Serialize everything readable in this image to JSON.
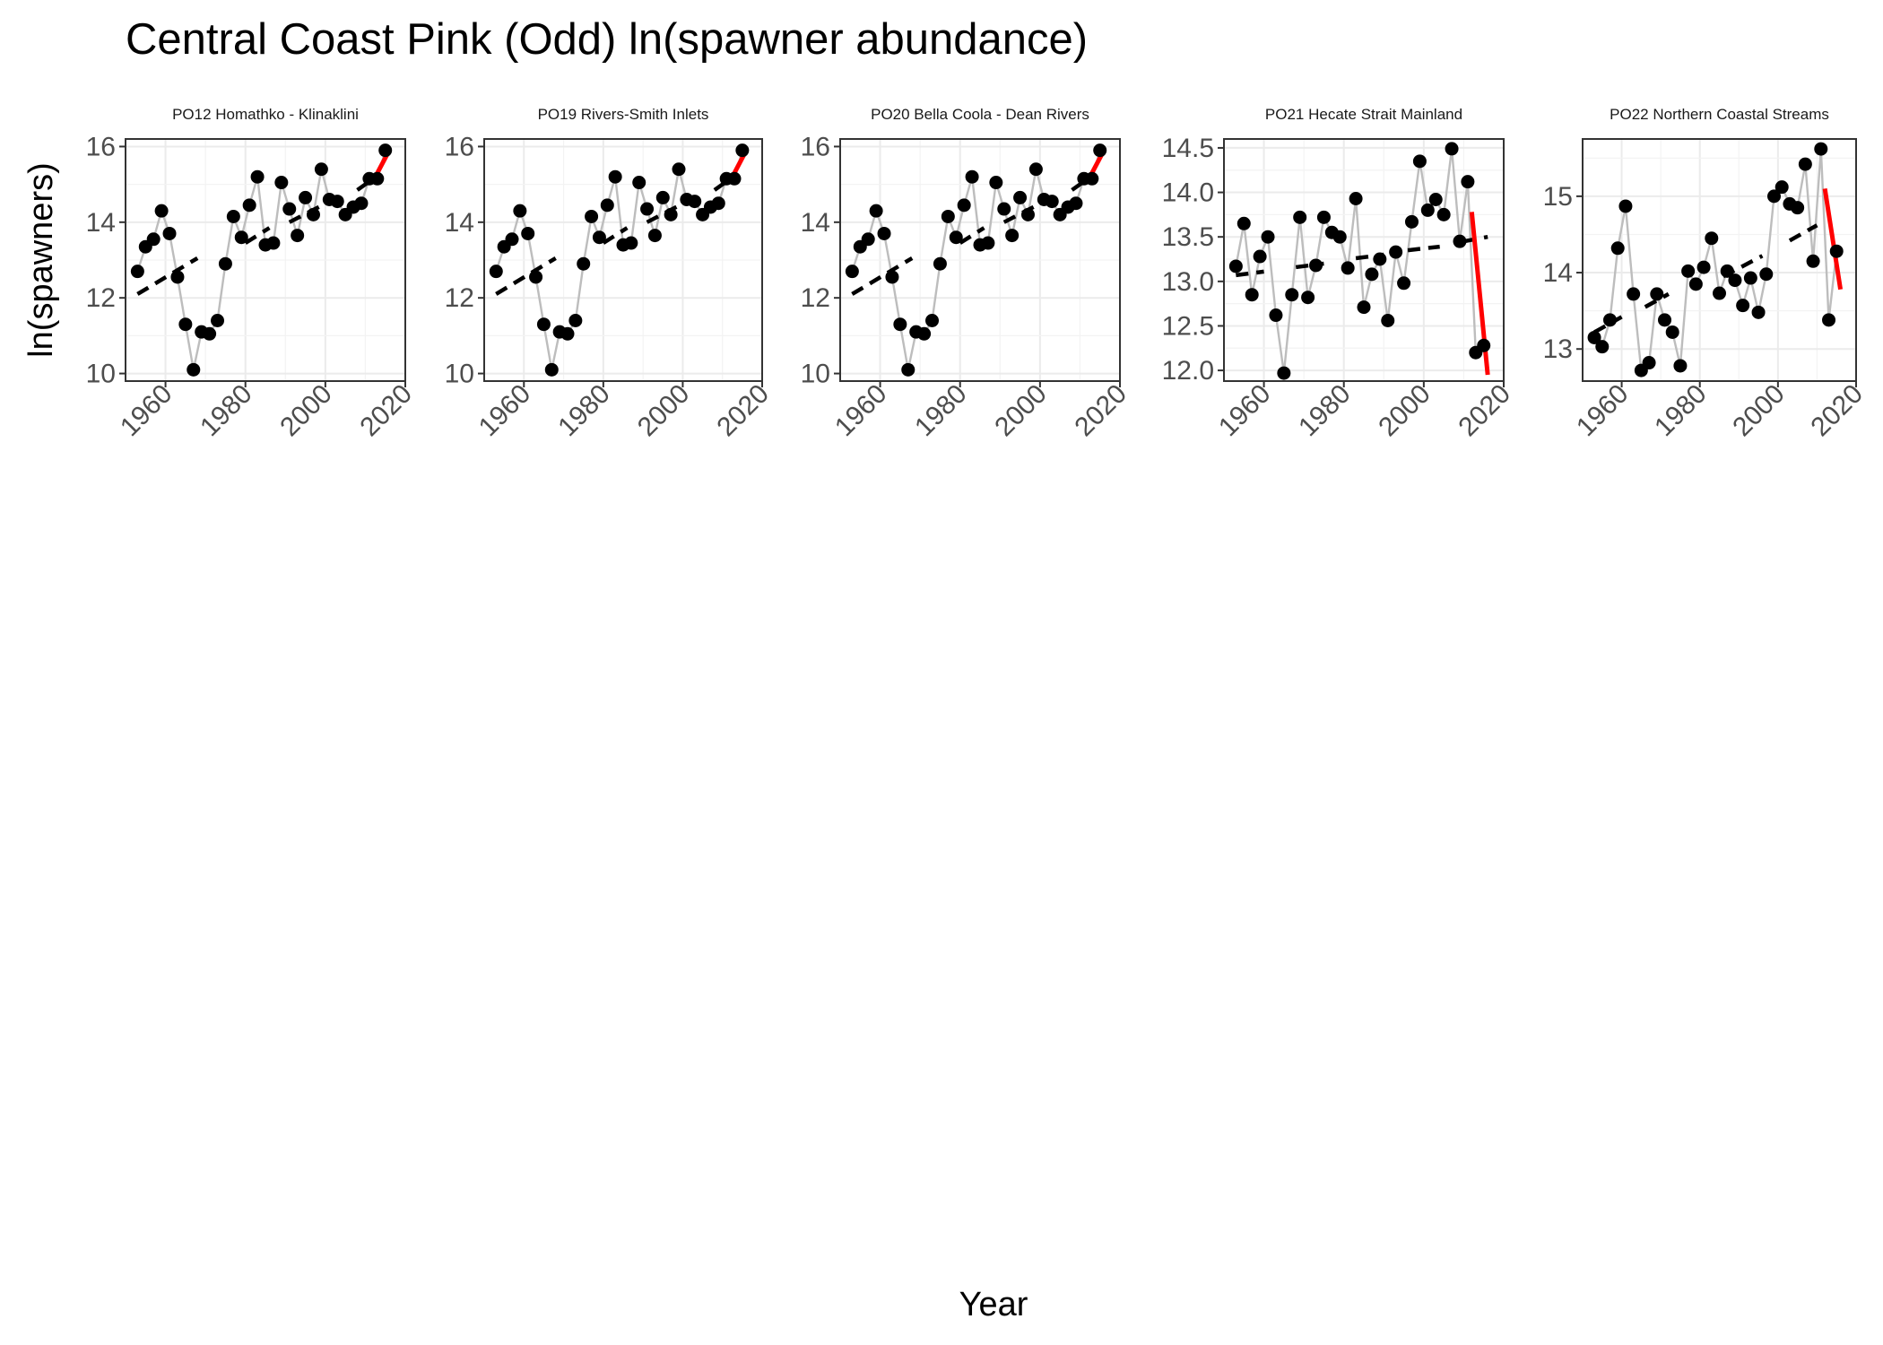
{
  "figure": {
    "title": "Central Coast Pink (Odd) ln(spawner abundance)",
    "xlabel": "Year",
    "ylabel": "ln(spawners)"
  },
  "chart_data": [
    {
      "type": "line",
      "title": "PO12 Homathko - Klinaklini",
      "xlim": [
        1950,
        2020
      ],
      "ylim": [
        9.8,
        16.2
      ],
      "xticks": [
        1960,
        1980,
        2000,
        2020
      ],
      "yticks": [
        10,
        12,
        14,
        16
      ],
      "grid": true,
      "years": [
        1953,
        1955,
        1957,
        1959,
        1961,
        1963,
        1965,
        1967,
        1969,
        1971,
        1973,
        1975,
        1977,
        1979,
        1981,
        1983,
        1985,
        1987,
        1989,
        1991,
        1993,
        1995,
        1997,
        1999,
        2001,
        2003,
        2005,
        2007,
        2009,
        2011,
        2013,
        2015
      ],
      "values": [
        12.7,
        13.35,
        13.55,
        14.3,
        13.7,
        12.55,
        11.3,
        10.1,
        11.1,
        11.05,
        11.4,
        12.9,
        14.15,
        13.6,
        14.45,
        15.2,
        13.4,
        13.45,
        15.05,
        14.35,
        13.65,
        14.65,
        14.2,
        15.4,
        14.6,
        14.55,
        14.2,
        14.4,
        14.5,
        15.15,
        15.15,
        15.9
      ],
      "trend_dashed": [
        {
          "x": [
            1953,
            1968
          ],
          "y": [
            12.1,
            13.05
          ]
        },
        {
          "x": [
            1980,
            1986
          ],
          "y": [
            13.45,
            13.85
          ]
        },
        {
          "x": [
            1991,
            2002
          ],
          "y": [
            14.0,
            14.6
          ]
        },
        {
          "x": [
            2008,
            2012
          ],
          "y": [
            14.85,
            15.15
          ]
        }
      ],
      "trend_recent": {
        "x": [
          2012,
          2016
        ],
        "y": [
          15.1,
          15.9
        ]
      }
    },
    {
      "type": "line",
      "title": "PO19 Rivers-Smith Inlets",
      "xlim": [
        1950,
        2020
      ],
      "ylim": [
        9.8,
        16.2
      ],
      "xticks": [
        1960,
        1980,
        2000,
        2020
      ],
      "yticks": [
        10,
        12,
        14,
        16
      ],
      "grid": true,
      "years": [
        1953,
        1955,
        1957,
        1959,
        1961,
        1963,
        1965,
        1967,
        1969,
        1971,
        1973,
        1975,
        1977,
        1979,
        1981,
        1983,
        1985,
        1987,
        1989,
        1991,
        1993,
        1995,
        1997,
        1999,
        2001,
        2003,
        2005,
        2007,
        2009,
        2011,
        2013,
        2015
      ],
      "values": [
        12.7,
        13.35,
        13.55,
        14.3,
        13.7,
        12.55,
        11.3,
        10.1,
        11.1,
        11.05,
        11.4,
        12.9,
        14.15,
        13.6,
        14.45,
        15.2,
        13.4,
        13.45,
        15.05,
        14.35,
        13.65,
        14.65,
        14.2,
        15.4,
        14.6,
        14.55,
        14.2,
        14.4,
        14.5,
        15.15,
        15.15,
        15.9
      ],
      "trend_dashed": [
        {
          "x": [
            1953,
            1968
          ],
          "y": [
            12.1,
            13.05
          ]
        },
        {
          "x": [
            1980,
            1986
          ],
          "y": [
            13.45,
            13.85
          ]
        },
        {
          "x": [
            1991,
            2002
          ],
          "y": [
            14.0,
            14.6
          ]
        },
        {
          "x": [
            2008,
            2012
          ],
          "y": [
            14.85,
            15.15
          ]
        }
      ],
      "trend_recent": {
        "x": [
          2012,
          2016
        ],
        "y": [
          15.1,
          15.9
        ]
      }
    },
    {
      "type": "line",
      "title": "PO20 Bella Coola - Dean Rivers",
      "xlim": [
        1950,
        2020
      ],
      "ylim": [
        9.8,
        16.2
      ],
      "xticks": [
        1960,
        1980,
        2000,
        2020
      ],
      "yticks": [
        10,
        12,
        14,
        16
      ],
      "grid": true,
      "years": [
        1953,
        1955,
        1957,
        1959,
        1961,
        1963,
        1965,
        1967,
        1969,
        1971,
        1973,
        1975,
        1977,
        1979,
        1981,
        1983,
        1985,
        1987,
        1989,
        1991,
        1993,
        1995,
        1997,
        1999,
        2001,
        2003,
        2005,
        2007,
        2009,
        2011,
        2013,
        2015
      ],
      "values": [
        12.7,
        13.35,
        13.55,
        14.3,
        13.7,
        12.55,
        11.3,
        10.1,
        11.1,
        11.05,
        11.4,
        12.9,
        14.15,
        13.6,
        14.45,
        15.2,
        13.4,
        13.45,
        15.05,
        14.35,
        13.65,
        14.65,
        14.2,
        15.4,
        14.6,
        14.55,
        14.2,
        14.4,
        14.5,
        15.15,
        15.15,
        15.9
      ],
      "trend_dashed": [
        {
          "x": [
            1953,
            1968
          ],
          "y": [
            12.1,
            13.05
          ]
        },
        {
          "x": [
            1980,
            1986
          ],
          "y": [
            13.45,
            13.85
          ]
        },
        {
          "x": [
            1991,
            2002
          ],
          "y": [
            14.0,
            14.6
          ]
        },
        {
          "x": [
            2008,
            2012
          ],
          "y": [
            14.85,
            15.15
          ]
        }
      ],
      "trend_recent": {
        "x": [
          2012,
          2016
        ],
        "y": [
          15.1,
          15.9
        ]
      }
    },
    {
      "type": "line",
      "title": "PO21 Hecate Strait Mainland",
      "xlim": [
        1950,
        2020
      ],
      "ylim": [
        11.88,
        14.6
      ],
      "xticks": [
        1960,
        1980,
        2000,
        2020
      ],
      "yticks": [
        12.0,
        12.5,
        13.0,
        13.5,
        14.0,
        14.5
      ],
      "ytick_labels": [
        "12.0",
        "12.5",
        "13.0",
        "13.5",
        "14.0",
        "14.5"
      ],
      "grid": true,
      "years": [
        1953,
        1955,
        1957,
        1959,
        1961,
        1963,
        1965,
        1967,
        1969,
        1971,
        1973,
        1975,
        1977,
        1979,
        1981,
        1983,
        1985,
        1987,
        1989,
        1991,
        1993,
        1995,
        1997,
        1999,
        2001,
        2003,
        2005,
        2007,
        2009,
        2011,
        2013,
        2015
      ],
      "values": [
        13.17,
        13.65,
        12.85,
        13.28,
        13.5,
        12.62,
        11.97,
        12.85,
        13.72,
        12.82,
        13.18,
        13.72,
        13.55,
        13.5,
        13.15,
        13.93,
        12.71,
        13.08,
        13.25,
        12.56,
        13.33,
        12.98,
        13.67,
        14.35,
        13.8,
        13.92,
        13.75,
        14.49,
        13.45,
        14.12,
        12.2,
        12.28
      ],
      "trend_dashed": [
        {
          "x": [
            1953,
            1960
          ],
          "y": [
            13.07,
            13.11
          ]
        },
        {
          "x": [
            1968,
            1975
          ],
          "y": [
            13.16,
            13.2
          ]
        },
        {
          "x": [
            1983,
            1990
          ],
          "y": [
            13.26,
            13.3
          ]
        },
        {
          "x": [
            1996,
            2004
          ],
          "y": [
            13.35,
            13.39
          ]
        },
        {
          "x": [
            2010,
            2016
          ],
          "y": [
            13.45,
            13.5
          ]
        }
      ],
      "trend_recent": {
        "x": [
          2012,
          2016
        ],
        "y": [
          13.78,
          11.95
        ]
      }
    },
    {
      "type": "line",
      "title": "PO22 Northern Coastal Streams",
      "xlim": [
        1950,
        2020
      ],
      "ylim": [
        12.58,
        15.75
      ],
      "xticks": [
        1960,
        1980,
        2000,
        2020
      ],
      "yticks": [
        13,
        14,
        15
      ],
      "grid": true,
      "years": [
        1953,
        1955,
        1957,
        1959,
        1961,
        1963,
        1965,
        1967,
        1969,
        1971,
        1973,
        1975,
        1977,
        1979,
        1981,
        1983,
        1985,
        1987,
        1989,
        1991,
        1993,
        1995,
        1997,
        1999,
        2001,
        2003,
        2005,
        2007,
        2009,
        2011,
        2013,
        2015
      ],
      "values": [
        13.15,
        13.03,
        13.38,
        14.32,
        14.87,
        13.72,
        12.72,
        12.82,
        13.72,
        13.38,
        13.22,
        12.78,
        14.02,
        13.85,
        14.07,
        14.45,
        13.73,
        14.02,
        13.9,
        13.57,
        13.93,
        13.48,
        13.98,
        15.0,
        15.12,
        14.9,
        14.85,
        15.42,
        14.15,
        15.62,
        13.38,
        14.28
      ],
      "trend_dashed": [
        {
          "x": [
            1953,
            1960
          ],
          "y": [
            13.22,
            13.42
          ]
        },
        {
          "x": [
            1966,
            1972
          ],
          "y": [
            13.55,
            13.72
          ]
        },
        {
          "x": [
            1986,
            1996
          ],
          "y": [
            13.95,
            14.22
          ]
        },
        {
          "x": [
            2003,
            2010
          ],
          "y": [
            14.42,
            14.62
          ]
        }
      ],
      "trend_recent": {
        "x": [
          2012,
          2016
        ],
        "y": [
          15.1,
          13.78
        ]
      }
    }
  ]
}
